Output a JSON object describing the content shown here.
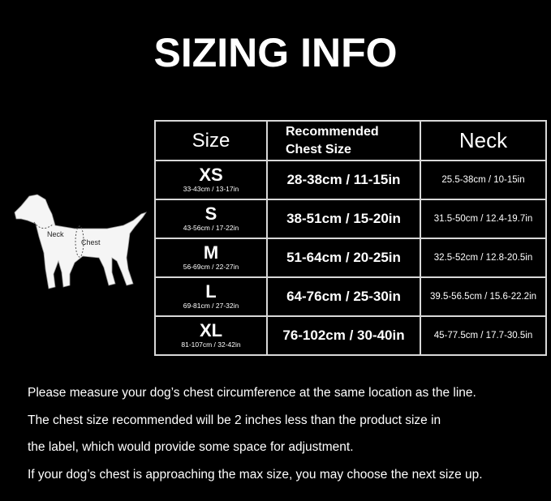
{
  "title": "SIZING INFO",
  "diagram": {
    "neck_label": "Neck",
    "chest_label": "Chest"
  },
  "table": {
    "headers": {
      "size": "Size",
      "chest_line1": "Recommended",
      "chest_line2": "Chest Size",
      "neck": "Neck"
    },
    "rows": [
      {
        "size": "XS",
        "product": "33-43cm / 13-17in",
        "chest": "28-38cm / 11-15in",
        "neck": "25.5-38cm / 10-15in"
      },
      {
        "size": "S",
        "product": "43-56cm / 17-22in",
        "chest": "38-51cm / 15-20in",
        "neck": "31.5-50cm / 12.4-19.7in"
      },
      {
        "size": "M",
        "product": "56-69cm / 22-27in",
        "chest": "51-64cm / 20-25in",
        "neck": "32.5-52cm / 12.8-20.5in"
      },
      {
        "size": "L",
        "product": "69-81cm / 27-32in",
        "chest": "64-76cm / 25-30in",
        "neck": "39.5-56.5cm / 15.6-22.2in"
      },
      {
        "size": "XL",
        "product": "81-107cm / 32-42in",
        "chest": "76-102cm / 30-40in",
        "neck": "45-77.5cm / 17.7-30.5in"
      }
    ]
  },
  "notes": [
    "Please measure your dog’s chest circumference at the same location as the line.",
    "The chest size recommended will be 2 inches less than the product size in",
    "the label, which would provide some space for adjustment.",
    "If your dog’s chest is approaching the max size, you may choose the next size up."
  ]
}
